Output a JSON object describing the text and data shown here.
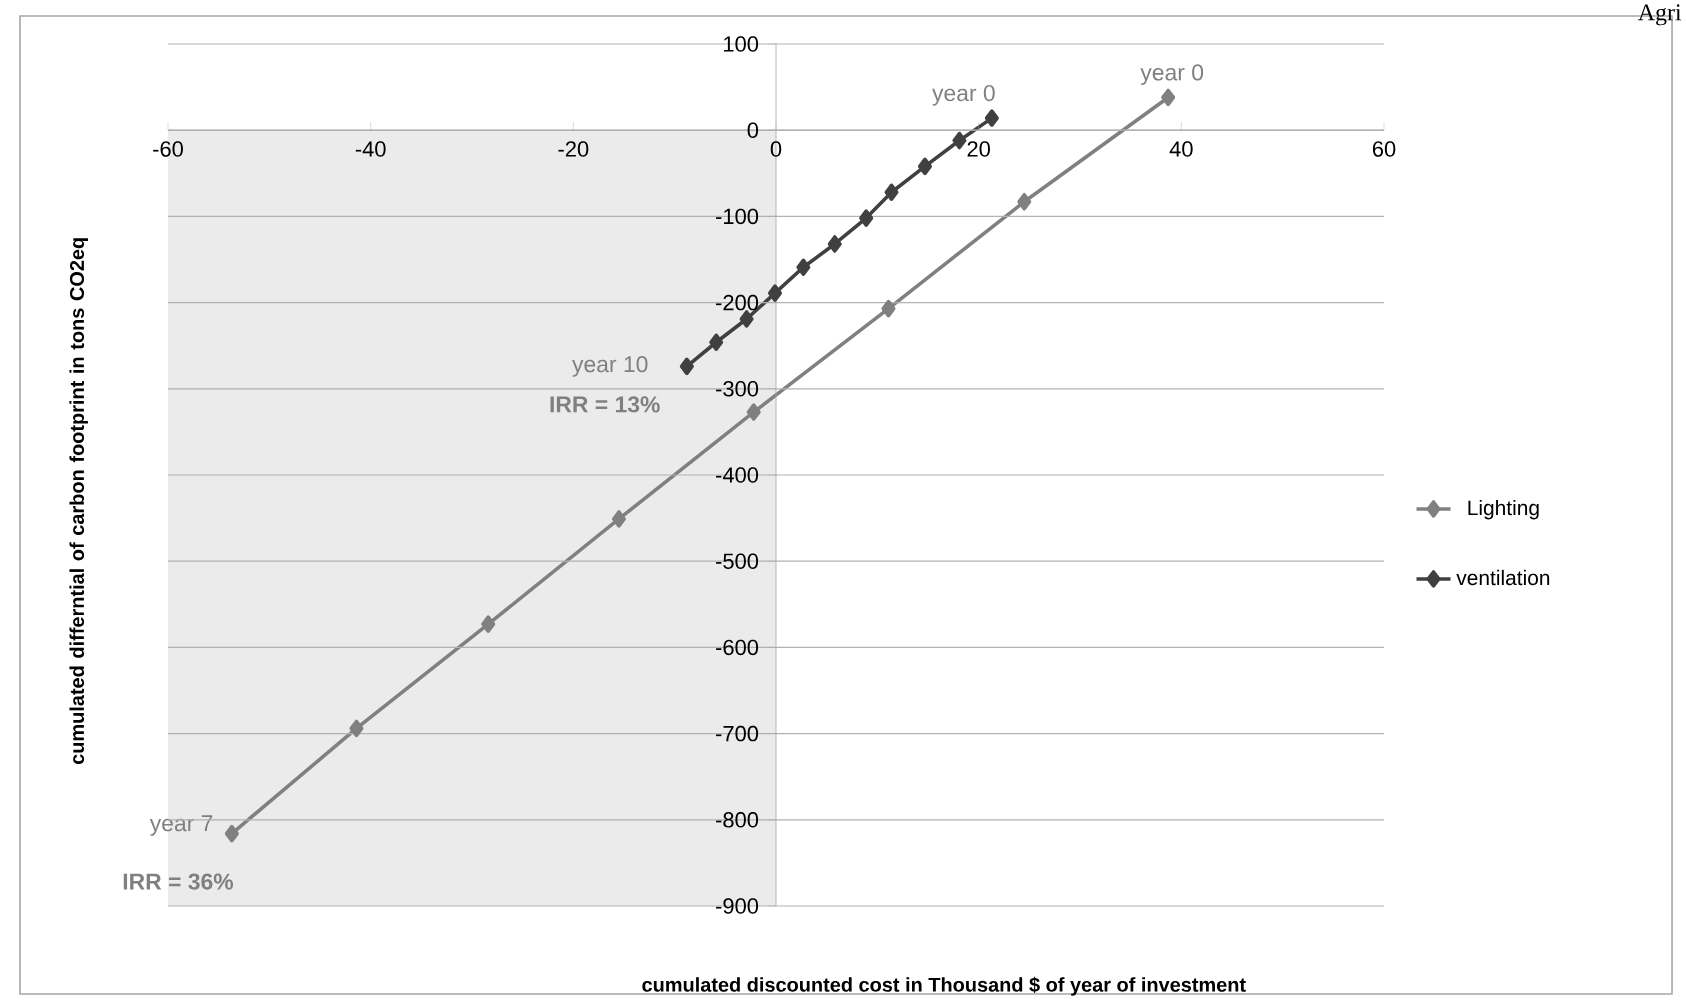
{
  "chart_data": {
    "type": "line",
    "xlabel": "cumulated discounted cost in Thousand $ of year of investment",
    "ylabel": "cumulated  differntial of carbon footprint in tons CO2eq",
    "xlim": [
      -60,
      60
    ],
    "xticks": [
      -60,
      -40,
      -20,
      0,
      20,
      40,
      60
    ],
    "ylim": [
      -900,
      100
    ],
    "yticks": [
      -900,
      -800,
      -700,
      -600,
      -500,
      -400,
      -300,
      -200,
      -100,
      0,
      100
    ],
    "grid": "y",
    "legend": "right",
    "marker": "diamond",
    "line_style": "solid",
    "bands": [
      {
        "axis": "x",
        "from": -60,
        "to": 0,
        "color": "#ebebeb"
      }
    ],
    "series": [
      {
        "name": "Lighting",
        "color": "#808080",
        "x": [
          38.7,
          24.5,
          11.1,
          -2.2,
          -15.5,
          -28.4,
          -41.4,
          -53.7
        ],
        "values": [
          38,
          -83,
          -207,
          -327,
          -451,
          -573,
          -694,
          -816
        ]
      },
      {
        "name": "ventilation",
        "color": "#404040",
        "x": [
          21.3,
          18.1,
          14.7,
          11.4,
          8.9,
          5.8,
          2.7,
          -0.1,
          -2.9,
          -5.9,
          -8.8
        ],
        "values": [
          14,
          -12,
          -42,
          -72,
          -102,
          -132,
          -159,
          -189,
          -219,
          -246,
          -274
        ]
      }
    ],
    "annotations": [
      {
        "text": "year 0",
        "x": 38.7,
        "y": 38
      },
      {
        "text": "year 0",
        "x": 21.3,
        "y": 14
      },
      {
        "text": "year 10",
        "x": -8.8,
        "y": -274
      },
      {
        "text": "IRR = 13%",
        "x": -8.8,
        "y": -274
      },
      {
        "text": "year 7",
        "x": -53.7,
        "y": -816
      },
      {
        "text": "IRR = 36%",
        "x": -53.7,
        "y": -816
      },
      "Agri"
    ]
  }
}
